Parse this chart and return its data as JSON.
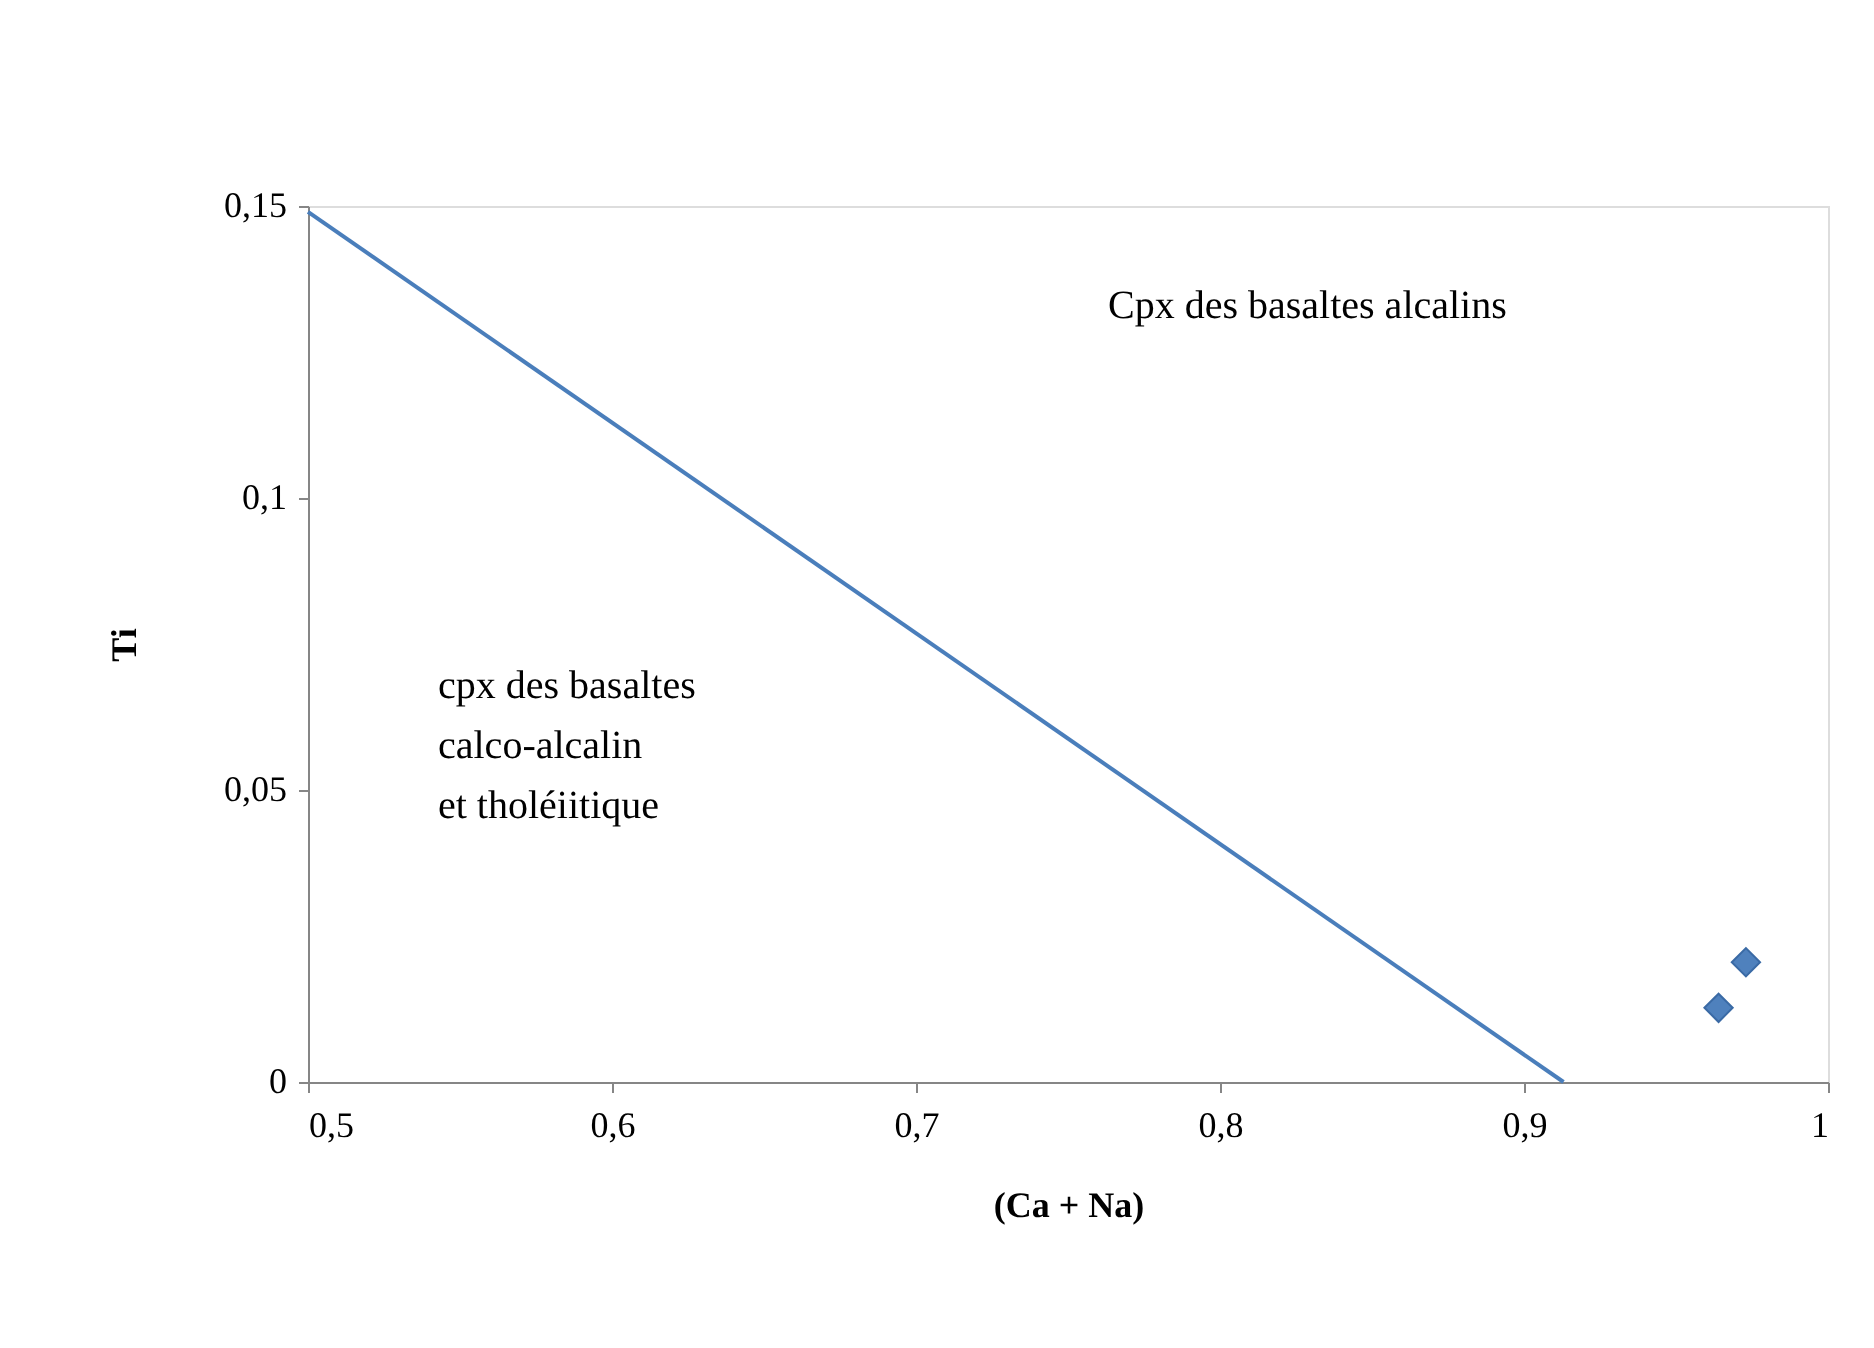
{
  "chart_data": {
    "type": "scatter",
    "xlabel": "(Ca + Na)",
    "ylabel": "Ti",
    "xlim": [
      0.5,
      1
    ],
    "ylim": [
      0,
      0.15
    ],
    "xticks": [
      {
        "value": 0.5,
        "label": "0,5"
      },
      {
        "value": 0.6,
        "label": "0,6"
      },
      {
        "value": 0.7,
        "label": "0,7"
      },
      {
        "value": 0.8,
        "label": "0,8"
      },
      {
        "value": 0.9,
        "label": "0,9"
      },
      1
    ],
    "yticks": [
      0,
      {
        "value": 0.05,
        "label": "0,05"
      },
      {
        "value": 0.1,
        "label": "0,1"
      },
      {
        "value": 0.15,
        "label": "0,15"
      }
    ],
    "grid": false,
    "legend": false,
    "annotations": [
      "Cpx des basaltes alcalins",
      "cpx des basaltes\ncalco-alcalin\net tholéiitique"
    ],
    "series": [
      {
        "type": "line",
        "color": "#4a7ebb",
        "line_style": "solid",
        "marker": "none",
        "x": [
          0.5,
          0.913
        ],
        "values": [
          0.149,
          0
        ]
      },
      {
        "color": "#4f81bd",
        "marker": "diamond",
        "x": [
          0.964,
          0.973
        ],
        "values": [
          0.0127,
          0.0205
        ]
      }
    ]
  }
}
